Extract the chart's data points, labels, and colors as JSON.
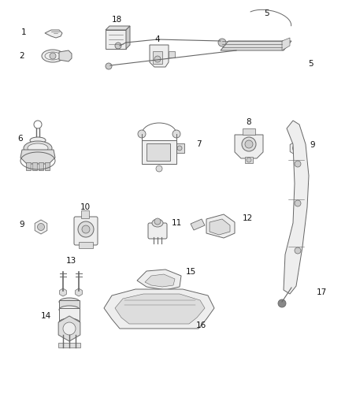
{
  "background_color": "#ffffff",
  "figsize": [
    4.38,
    5.33
  ],
  "dpi": 100,
  "ec": "#666666",
  "fc_light": "#eeeeee",
  "fc_mid": "#dddddd",
  "fc_dark": "#cccccc"
}
